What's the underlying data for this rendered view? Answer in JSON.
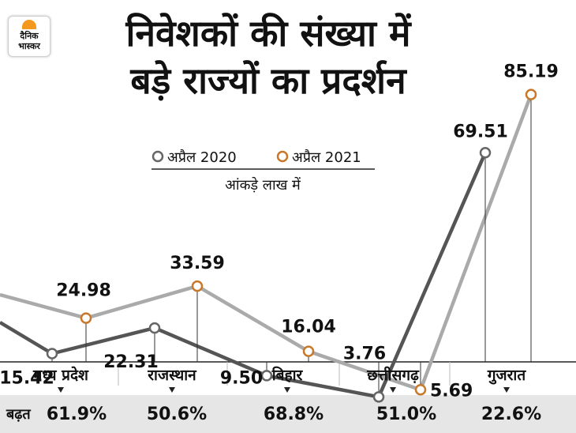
{
  "logo": {
    "line1": "दैनिक",
    "line2": "भास्कर"
  },
  "colors": {
    "series_2020": "#555555",
    "series_2021": "#aaaaaa",
    "marker_2021": "#c8782a",
    "bottom_band": "#e6e6e6"
  },
  "chart_data": {
    "type": "line",
    "title": "निवेशकों की संख्या में बड़े राज्यों का प्रदर्शन",
    "unit_note": "आंकड़े लाख में",
    "categories": [
      "मध्य प्रदेश",
      "राजस्थान",
      "बिहार",
      "छत्तीसगढ़",
      "गुजरात"
    ],
    "series": [
      {
        "name": "अप्रैल 2020",
        "values": [
          15.42,
          22.31,
          9.5,
          3.76,
          69.51
        ]
      },
      {
        "name": "अप्रैल 2021",
        "values": [
          24.98,
          33.59,
          16.04,
          5.69,
          85.19
        ]
      }
    ],
    "value_labels_2020": [
      "15.42",
      "22.31",
      "9.50",
      "3.76",
      "69.51"
    ],
    "value_labels_2021": [
      "24.98",
      "33.59",
      "16.04",
      "5.69",
      "85.19"
    ],
    "growth_label": "बढ़त",
    "growth": [
      "61.9%",
      "50.6%",
      "68.8%",
      "51.0%",
      "22.6%"
    ],
    "legend_position": "top-center",
    "grid": false
  }
}
